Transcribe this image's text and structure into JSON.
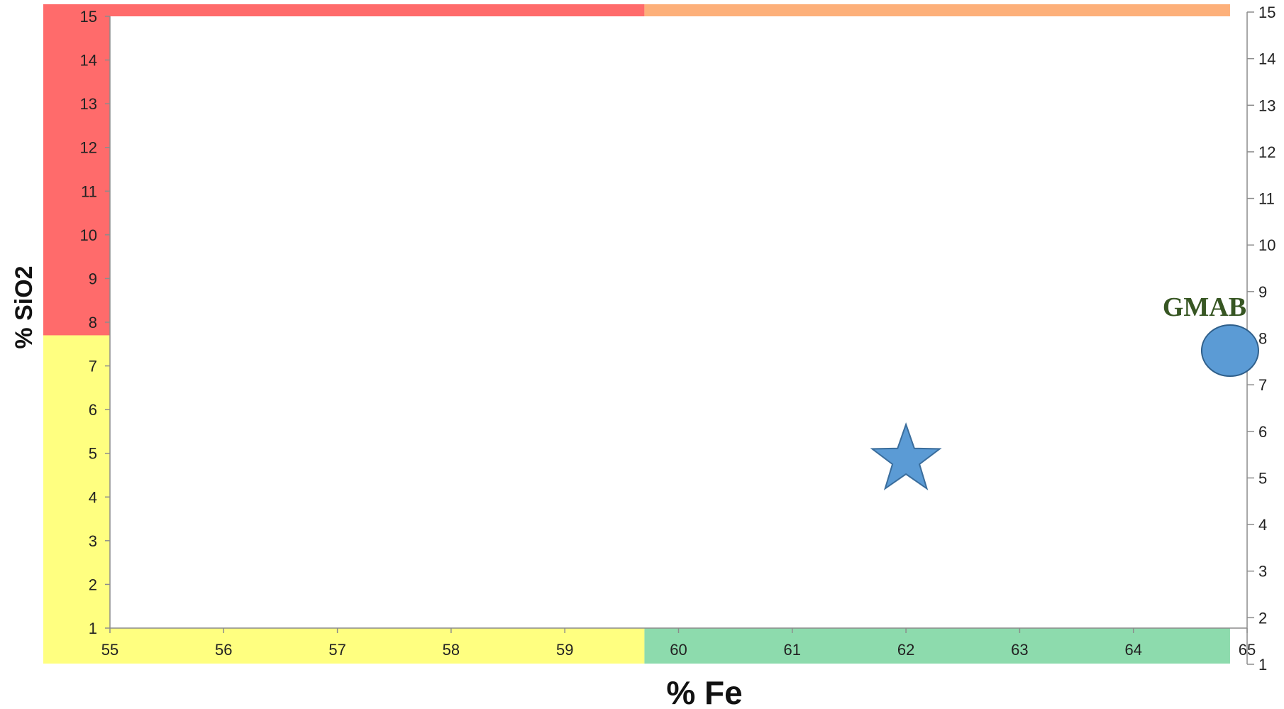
{
  "chart_data": {
    "type": "scatter",
    "xlabel": "% Fe",
    "ylabel": "% SiO2",
    "xlim": [
      55,
      65
    ],
    "ylim": [
      1,
      15
    ],
    "right_ylim": [
      1,
      15
    ],
    "x_ticks": [
      "55",
      "56",
      "57",
      "58",
      "59",
      "60",
      "61",
      "62",
      "63",
      "64",
      "65"
    ],
    "y_ticks": [
      "1",
      "2",
      "3",
      "4",
      "5",
      "6",
      "7",
      "8",
      "9",
      "10",
      "11",
      "12",
      "13",
      "14",
      "15"
    ],
    "right_ticks": [
      "1",
      "2",
      "3",
      "4",
      "5",
      "6",
      "7",
      "8",
      "9",
      "10",
      "11",
      "12",
      "13",
      "14",
      "15"
    ],
    "grid": false,
    "zones": [
      {
        "name": "left-upper",
        "color": "#ff6b6b",
        "y_from": 7.7,
        "y_to": 15
      },
      {
        "name": "left-lower",
        "color": "#ffff80",
        "y_from": 1,
        "y_to": 7.7
      },
      {
        "name": "bottom-left",
        "color": "#ffff80",
        "x_from": 55,
        "x_to": 59.7
      },
      {
        "name": "bottom-right",
        "color": "#8ddbad",
        "x_from": 59.7,
        "x_to": 64.85
      },
      {
        "name": "top-left",
        "color": "#ff6b6b",
        "x_from": 55,
        "x_to": 59.7
      },
      {
        "name": "top-right",
        "color": "#fdb07a",
        "x_from": 59.7,
        "x_to": 64.85
      }
    ],
    "points": [
      {
        "label": "",
        "shape": "star",
        "x": 62.0,
        "y": 4.85,
        "color": "#5b9bd5"
      },
      {
        "label": "GMAB",
        "shape": "circle",
        "x": 64.85,
        "y": 7.35,
        "color": "#5b9bd5",
        "label_color": "#375623"
      }
    ]
  }
}
